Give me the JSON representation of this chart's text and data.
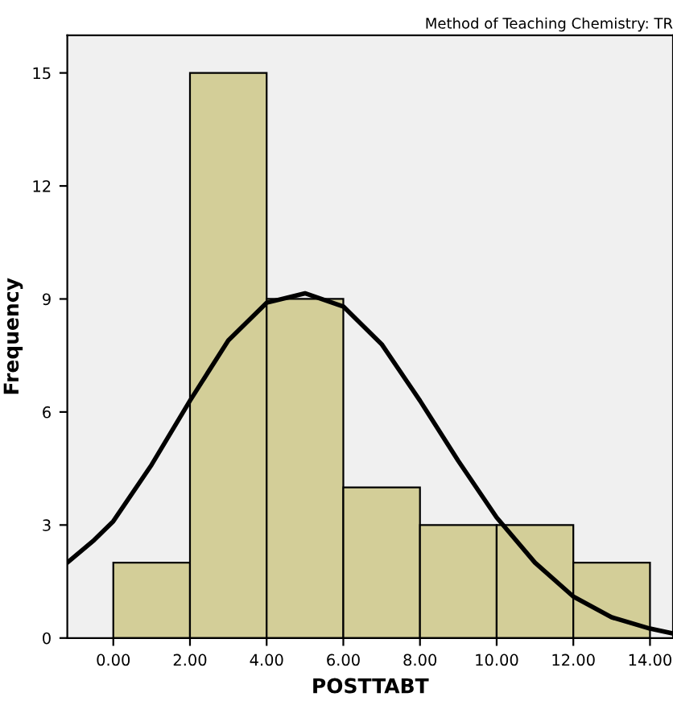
{
  "chart_data": {
    "type": "histogram",
    "title": "Method of Teaching Chemistry: TR",
    "xlabel": "POSTTABT",
    "ylabel": "Frequency",
    "bins": [
      0,
      2,
      4,
      6,
      8,
      10,
      12,
      14
    ],
    "values": [
      2,
      15,
      9,
      4,
      3,
      3,
      2
    ],
    "color": "#d3ce98",
    "series": [
      {
        "type": "line",
        "color": "#000000",
        "x": [
          -1.2,
          -0.5,
          0,
          1,
          2,
          3,
          4,
          5,
          6,
          7,
          8,
          9,
          10,
          11,
          12,
          13,
          14,
          14.6
        ],
        "values": [
          2.0,
          2.6,
          3.1,
          4.6,
          6.3,
          7.9,
          8.9,
          9.15,
          8.8,
          7.8,
          6.3,
          4.7,
          3.2,
          2.0,
          1.1,
          0.55,
          0.25,
          0.12
        ]
      }
    ],
    "xlim": [
      -1.2,
      14.6
    ],
    "ylim": [
      0,
      16
    ],
    "xticks": [
      {
        "value": 0,
        "label": "0.00"
      },
      {
        "value": 2,
        "label": "2.00"
      },
      {
        "value": 4,
        "label": "4.00"
      },
      {
        "value": 6,
        "label": "6.00"
      },
      {
        "value": 8,
        "label": "8.00"
      },
      {
        "value": 10,
        "label": "10.00"
      },
      {
        "value": 12,
        "label": "12.00"
      },
      {
        "value": 14,
        "label": "14.00"
      }
    ],
    "yticks": [
      0,
      3,
      6,
      9,
      12,
      15
    ],
    "grid": false,
    "legend": false
  }
}
